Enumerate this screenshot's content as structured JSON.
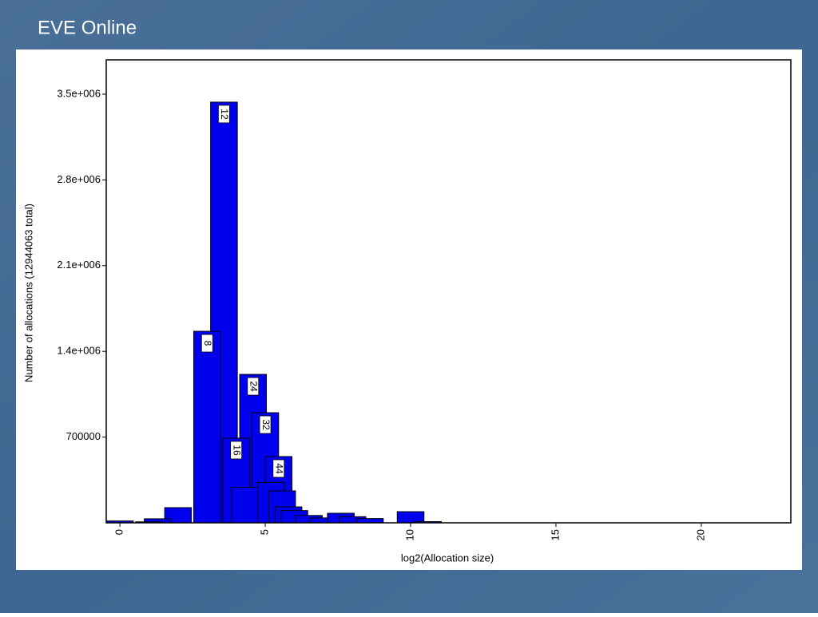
{
  "slide_title": "EVE Online",
  "chart_data": {
    "type": "bar",
    "xlabel": "log2(Allocation size)",
    "ylabel": "Number of allocations (12944063 total)",
    "x": [
      3.58,
      3.0,
      4.58,
      5.0,
      4.0,
      5.46,
      2.0,
      10.0,
      4.3,
      5.2,
      5.58,
      5.8,
      6.0,
      6.5,
      7.0,
      7.6,
      8.0,
      8.6,
      1.3,
      0.0,
      1.0,
      10.6
    ],
    "values": [
      3435000,
      1564000,
      1212000,
      899000,
      691000,
      541000,
      124000,
      91000,
      290000,
      330000,
      261000,
      130000,
      100000,
      60000,
      40000,
      78000,
      50000,
      35000,
      33000,
      15000,
      8000,
      10000
    ],
    "bar_labels": [
      "12",
      "8",
      "24",
      "32",
      "16",
      "44",
      null,
      null,
      null,
      null,
      null,
      null,
      null,
      null,
      null,
      null,
      null,
      null,
      null,
      null,
      null,
      null
    ],
    "color": "#0000ee",
    "xlim": [
      -0.47,
      23.08
    ],
    "ylim": [
      0,
      3780000
    ],
    "xticks": [
      0,
      5,
      10,
      15,
      20
    ],
    "yticks": [
      700000,
      {
        "value": 1400000,
        "label": "1.4e+006"
      },
      {
        "value": 2100000,
        "label": "2.1e+006"
      },
      {
        "value": 2800000,
        "label": "2.8e+006"
      },
      {
        "value": 3500000,
        "label": "3.5e+006"
      }
    ]
  }
}
